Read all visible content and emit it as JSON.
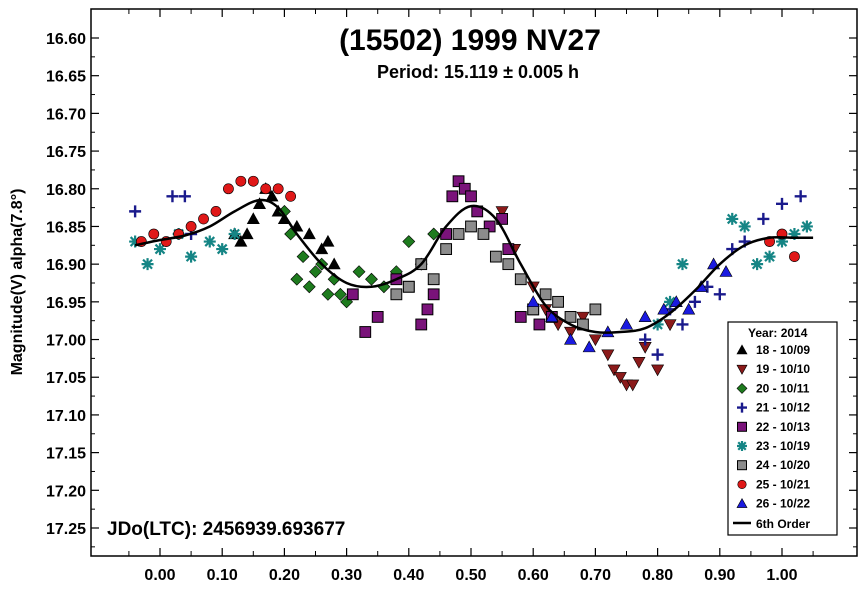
{
  "chart_data": {
    "type": "scatter",
    "title": "(15502) 1999 NV27",
    "subtitle": "Period: 15.119 ± 0.005 h",
    "ylabel": "Magnitude(V) alpha(7.8°)",
    "xlabel": "",
    "epoch_label": "JDo(LTC): 2456939.693677",
    "xlim": [
      -0.1,
      1.09
    ],
    "ylim": [
      17.3,
      16.565
    ],
    "y_inverted": true,
    "x_ticks": [
      "0.00",
      "0.10",
      "0.20",
      "0.30",
      "0.40",
      "0.50",
      "0.60",
      "0.70",
      "0.80",
      "0.90",
      "1.00"
    ],
    "y_ticks": [
      "16.60",
      "16.65",
      "16.70",
      "16.75",
      "16.80",
      "16.85",
      "16.90",
      "16.95",
      "17.00",
      "17.05",
      "17.10",
      "17.15",
      "17.20",
      "17.25"
    ],
    "legend_title": "Year: 2014",
    "legend_placement": "bottom-right",
    "fit": {
      "name": "6th Order",
      "x": [
        -0.04,
        0.0,
        0.04,
        0.08,
        0.12,
        0.16,
        0.19,
        0.22,
        0.26,
        0.3,
        0.34,
        0.38,
        0.42,
        0.46,
        0.5,
        0.54,
        0.58,
        0.62,
        0.66,
        0.7,
        0.74,
        0.78,
        0.82,
        0.86,
        0.9,
        0.94,
        0.98,
        1.02,
        1.05
      ],
      "y": [
        16.875,
        16.868,
        16.862,
        16.85,
        16.83,
        16.815,
        16.825,
        16.86,
        16.9,
        16.925,
        16.93,
        16.92,
        16.9,
        16.85,
        16.823,
        16.84,
        16.9,
        16.955,
        16.98,
        16.99,
        16.99,
        16.985,
        16.965,
        16.935,
        16.9,
        16.875,
        16.865,
        16.865,
        16.865
      ]
    },
    "series": [
      {
        "name": "18 - 10/09",
        "marker": "triangle-up",
        "color": "#000000",
        "x": [
          0.12,
          0.13,
          0.14,
          0.15,
          0.16,
          0.17,
          0.18,
          0.19,
          0.2,
          0.22,
          0.24,
          0.26,
          0.27,
          0.28
        ],
        "y": [
          16.86,
          16.87,
          16.86,
          16.84,
          16.82,
          16.8,
          16.81,
          16.83,
          16.84,
          16.85,
          16.86,
          16.88,
          16.87,
          16.9
        ]
      },
      {
        "name": "19 - 10/10",
        "marker": "triangle-down",
        "color": "#8b1a1a",
        "x": [
          0.55,
          0.57,
          0.6,
          0.62,
          0.64,
          0.66,
          0.68,
          0.7,
          0.72,
          0.73,
          0.74,
          0.75,
          0.76,
          0.77,
          0.78,
          0.8,
          0.82
        ],
        "y": [
          16.83,
          16.88,
          16.93,
          16.96,
          16.98,
          16.99,
          16.97,
          17.0,
          17.02,
          17.04,
          17.05,
          17.06,
          17.06,
          17.03,
          17.01,
          17.04,
          16.98
        ]
      },
      {
        "name": "20 - 10/11",
        "marker": "diamond",
        "color": "#1e7b1e",
        "x": [
          0.2,
          0.21,
          0.22,
          0.23,
          0.24,
          0.25,
          0.26,
          0.27,
          0.28,
          0.29,
          0.3,
          0.32,
          0.34,
          0.36,
          0.38,
          0.4,
          0.42,
          0.44
        ],
        "y": [
          16.83,
          16.86,
          16.92,
          16.89,
          16.93,
          16.91,
          16.9,
          16.94,
          16.92,
          16.94,
          16.95,
          16.91,
          16.92,
          16.93,
          16.91,
          16.87,
          16.9,
          16.86
        ]
      },
      {
        "name": "21 - 10/12",
        "marker": "plus",
        "color": "#1a1a8c",
        "x": [
          -0.04,
          0.02,
          0.04,
          0.05,
          0.78,
          0.8,
          0.82,
          0.84,
          0.86,
          0.88,
          0.9,
          0.92,
          0.94,
          0.97,
          1.0,
          1.03
        ],
        "y": [
          16.83,
          16.81,
          16.81,
          16.86,
          17.0,
          17.02,
          16.96,
          16.98,
          16.95,
          16.93,
          16.94,
          16.88,
          16.87,
          16.84,
          16.82,
          16.81
        ]
      },
      {
        "name": "22 - 10/13",
        "marker": "square",
        "color": "#7a137a",
        "x": [
          0.31,
          0.33,
          0.35,
          0.38,
          0.4,
          0.42,
          0.43,
          0.44,
          0.46,
          0.47,
          0.48,
          0.49,
          0.5,
          0.51,
          0.53,
          0.55,
          0.56,
          0.58,
          0.6,
          0.61,
          0.63
        ],
        "y": [
          16.94,
          16.99,
          16.97,
          16.92,
          16.93,
          16.98,
          16.96,
          16.94,
          16.86,
          16.81,
          16.79,
          16.8,
          16.81,
          16.83,
          16.85,
          16.84,
          16.88,
          16.97,
          16.96,
          16.98,
          16.97
        ]
      },
      {
        "name": "23 - 10/19",
        "marker": "asterisk",
        "color": "#158585",
        "x": [
          -0.04,
          -0.02,
          0.0,
          0.03,
          0.05,
          0.08,
          0.1,
          0.12,
          0.8,
          0.82,
          0.84,
          0.92,
          0.94,
          0.96,
          0.98,
          1.0,
          1.02,
          1.04
        ],
        "y": [
          16.87,
          16.9,
          16.88,
          16.86,
          16.89,
          16.87,
          16.88,
          16.86,
          16.98,
          16.95,
          16.9,
          16.84,
          16.85,
          16.9,
          16.89,
          16.87,
          16.86,
          16.85
        ]
      },
      {
        "name": "24 - 10/20",
        "marker": "square",
        "color": "#8c8c8c",
        "x": [
          0.38,
          0.4,
          0.42,
          0.44,
          0.46,
          0.48,
          0.5,
          0.52,
          0.54,
          0.56,
          0.58,
          0.6,
          0.62,
          0.64,
          0.66,
          0.68,
          0.7
        ],
        "y": [
          16.94,
          16.93,
          16.9,
          16.92,
          16.88,
          16.86,
          16.85,
          16.86,
          16.89,
          16.9,
          16.92,
          16.96,
          16.94,
          16.95,
          16.97,
          16.98,
          16.96
        ]
      },
      {
        "name": "25 - 10/21",
        "marker": "circle",
        "color": "#e01818",
        "x": [
          -0.03,
          -0.01,
          0.01,
          0.03,
          0.05,
          0.07,
          0.09,
          0.11,
          0.13,
          0.15,
          0.17,
          0.19,
          0.21,
          0.98,
          1.0,
          1.02
        ],
        "y": [
          16.87,
          16.86,
          16.87,
          16.86,
          16.85,
          16.84,
          16.83,
          16.8,
          16.79,
          16.79,
          16.8,
          16.8,
          16.81,
          16.87,
          16.86,
          16.89
        ]
      },
      {
        "name": "26 - 10/22",
        "marker": "triangle-up",
        "color": "#1a1ae0",
        "x": [
          0.6,
          0.63,
          0.66,
          0.69,
          0.72,
          0.75,
          0.78,
          0.81,
          0.83,
          0.85,
          0.87,
          0.89,
          0.91
        ],
        "y": [
          16.95,
          16.97,
          17.0,
          17.01,
          16.99,
          16.98,
          16.97,
          16.96,
          16.95,
          16.96,
          16.93,
          16.9,
          16.91
        ]
      }
    ]
  },
  "legend_fit_label": "6th Order"
}
